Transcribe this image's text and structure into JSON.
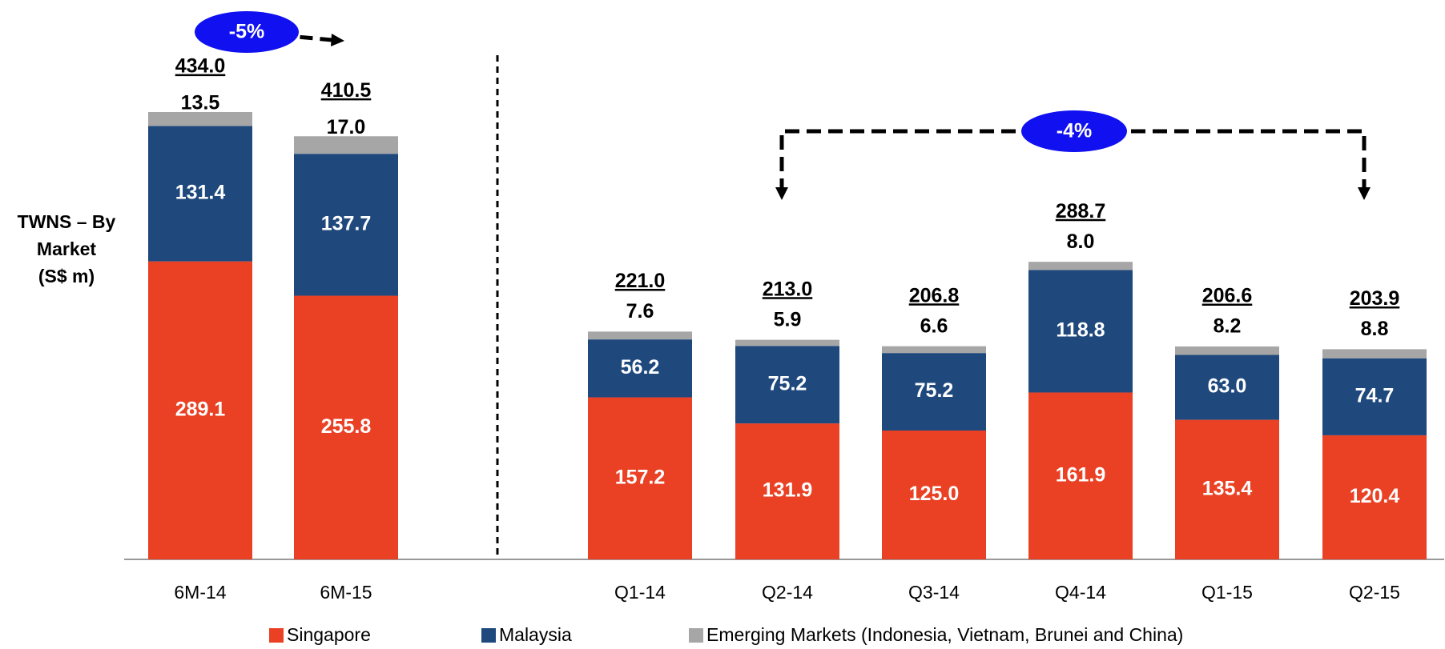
{
  "chart_data": {
    "type": "stacked_bar",
    "y_label": "TWNS – By Market (S$ m)",
    "categories": [
      "6M-14",
      "6M-15",
      "Q1-14",
      "Q2-14",
      "Q3-14",
      "Q4-14",
      "Q1-15",
      "Q2-15"
    ],
    "series": [
      {
        "name": "Singapore",
        "color": "#ea4125",
        "values": [
          289.1,
          255.8,
          157.2,
          131.9,
          125.0,
          161.9,
          135.4,
          120.4
        ],
        "value_labels": [
          "289.1",
          "255.8",
          "157.2",
          "131.9",
          "125.0",
          "161.9",
          "135.4",
          "120.4"
        ]
      },
      {
        "name": "Malaysia",
        "color": "#1f497d",
        "values": [
          131.4,
          137.7,
          56.2,
          75.2,
          75.2,
          118.8,
          63.0,
          74.7
        ],
        "value_labels": [
          "131.4",
          "137.7",
          "56.2",
          "75.2",
          "75.2",
          "118.8",
          "63.0",
          "74.7"
        ]
      },
      {
        "name": "Emerging Markets (Indonesia, Vietnam, Brunei and China)",
        "color": "#a6a6a6",
        "values": [
          13.5,
          17.0,
          7.6,
          5.9,
          6.6,
          8.0,
          8.2,
          8.8
        ],
        "value_labels": [
          "13.5",
          "17.0",
          "7.6",
          "5.9",
          "6.6",
          "8.0",
          "8.2",
          "8.8"
        ]
      }
    ],
    "totals": [
      434.0,
      410.5,
      221.0,
      213.0,
      206.8,
      288.7,
      206.6,
      203.9
    ],
    "totals_labels": [
      "434.0",
      "410.5",
      "221.0",
      "213.0",
      "206.8",
      "288.7",
      "206.6",
      "203.9"
    ],
    "annotations": [
      "-5%",
      "-4%"
    ]
  }
}
